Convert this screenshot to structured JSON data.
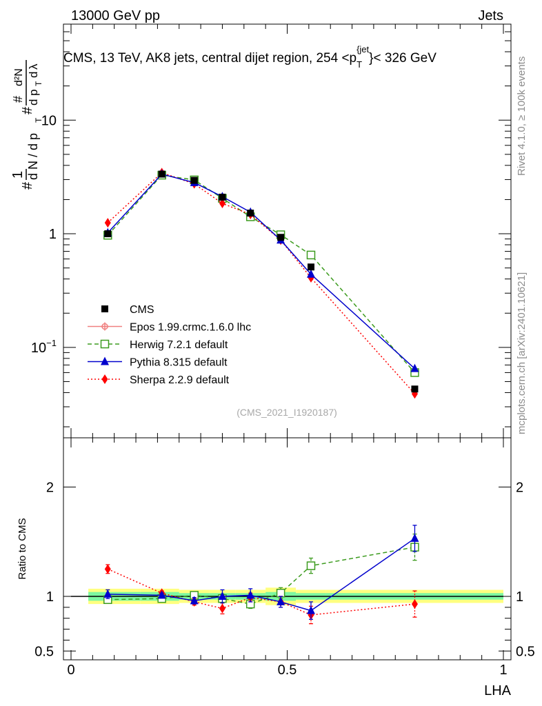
{
  "header": {
    "left": "13000 GeV pp",
    "right": "Jets"
  },
  "side_labels": {
    "rivet": "Rivet 4.1.0, ≥ 100k events",
    "mcplots": "mcplots.cern.ch [arXiv:2401.10621]"
  },
  "colors": {
    "cms": "#000000",
    "epos": "#f08080",
    "herwig": "#3c9b1e",
    "pythia": "#0000cc",
    "sherpa": "#ff0000",
    "band_inner": "#7cf7a0",
    "band_outer": "#ffff80"
  },
  "chart_data": [
    {
      "id": "main",
      "type": "scatter",
      "title": "CMS, 13 TeV, AK8 jets, central dijet region, 254 <p_T^{jet}< 326 GeV",
      "title_parts": {
        "pre": "CMS, 13 TeV, AK8 jets, central dijet region, 254 <p",
        "sub": "T",
        "sup": "{jet",
        "post": "}< 326 GeV"
      },
      "ylabel": "1/(dN/dp_T) d²N/(dp_T dλ)",
      "xlabel": "",
      "yscale": "log",
      "xlim": [
        0,
        1
      ],
      "ylim": [
        0.016,
        70
      ],
      "yticks": [
        {
          "v": 0.1,
          "base": "10",
          "exp": "−1"
        },
        {
          "v": 1,
          "label": "1"
        },
        {
          "v": 10,
          "label": "10"
        }
      ],
      "watermark": "(CMS_2021_I1920187)",
      "x": [
        0.085,
        0.21,
        0.285,
        0.35,
        0.415,
        0.485,
        0.555,
        0.795
      ],
      "series": [
        {
          "name": "CMS",
          "key": "cms",
          "values": [
            1.0,
            3.35,
            2.95,
            2.1,
            1.52,
            0.93,
            0.51,
            0.043
          ]
        },
        {
          "name": "Epos 1.99.crmc.1.6.0 lhc",
          "key": "epos",
          "values": []
        },
        {
          "name": "Herwig 7.2.1 default",
          "key": "herwig",
          "values": [
            0.97,
            3.28,
            2.98,
            2.05,
            1.41,
            0.98,
            0.65,
            0.06
          ]
        },
        {
          "name": "Pythia 8.315 default",
          "key": "pythia",
          "values": [
            1.02,
            3.35,
            2.82,
            2.12,
            1.55,
            0.88,
            0.44,
            0.065
          ]
        },
        {
          "name": "Sherpa 2.2.9 default",
          "key": "sherpa",
          "values": [
            1.25,
            3.45,
            2.75,
            1.85,
            1.48,
            0.88,
            0.41,
            0.039
          ]
        }
      ]
    },
    {
      "id": "ratio",
      "type": "scatter",
      "ylabel": "Ratio to CMS",
      "xlabel": "LHA",
      "ylim": [
        0.42,
        2.45
      ],
      "yticks": [
        0.5,
        1,
        2
      ],
      "xticks": [
        0,
        0.5,
        1
      ],
      "x": [
        0.085,
        0.21,
        0.285,
        0.35,
        0.415,
        0.485,
        0.555,
        0.795
      ],
      "series": [
        {
          "name": "Herwig 7.2.1 default",
          "key": "herwig",
          "values": [
            0.97,
            0.98,
            1.01,
            0.98,
            0.93,
            1.03,
            1.28,
            1.45
          ]
        },
        {
          "name": "Pythia 8.315 default",
          "key": "pythia",
          "values": [
            1.02,
            1.01,
            0.96,
            1.0,
            1.01,
            0.95,
            0.87,
            1.53
          ]
        },
        {
          "name": "Sherpa 2.2.9 default",
          "key": "sherpa",
          "values": [
            1.25,
            1.03,
            0.95,
            0.89,
            0.99,
            0.95,
            0.83,
            0.93
          ]
        }
      ],
      "errors": {
        "herwig": [
          0.02,
          0.02,
          0.03,
          0.04,
          0.04,
          0.05,
          0.07,
          0.12
        ],
        "pythia": [
          0.04,
          0.02,
          0.03,
          0.06,
          0.06,
          0.05,
          0.08,
          0.12
        ],
        "sherpa": [
          0.04,
          0.02,
          0.03,
          0.05,
          0.04,
          0.05,
          0.08,
          0.12
        ]
      },
      "band": [
        0.04,
        0.04,
        0.03,
        0.03,
        0.03,
        0.04,
        0.03,
        0.03
      ],
      "band_outer": [
        0.07,
        0.07,
        0.06,
        0.06,
        0.06,
        0.08,
        0.06,
        0.06
      ]
    }
  ]
}
